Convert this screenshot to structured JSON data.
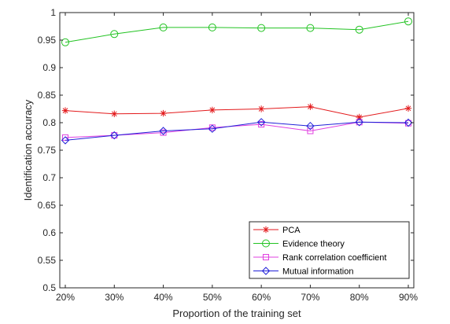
{
  "chart_data": {
    "type": "line",
    "title": "",
    "xlabel": "Proportion of the training set",
    "ylabel": "Identification accuracy",
    "categories": [
      "20%",
      "30%",
      "40%",
      "50%",
      "60%",
      "70%",
      "80%",
      "90%"
    ],
    "ylim": [
      0.5,
      1
    ],
    "yticks": [
      "0.5",
      "0.55",
      "0.6",
      "0.65",
      "0.7",
      "0.75",
      "0.8",
      "0.85",
      "0.9",
      "0.95",
      "1"
    ],
    "grid": false,
    "legend_position": "bottom-right",
    "series": [
      {
        "name": "PCA",
        "color": "#e31a1c",
        "marker": "star",
        "values": [
          0.822,
          0.816,
          0.817,
          0.823,
          0.825,
          0.829,
          0.81,
          0.826
        ]
      },
      {
        "name": "Evidence theory",
        "color": "#22c322",
        "marker": "circle",
        "values": [
          0.946,
          0.961,
          0.973,
          0.973,
          0.972,
          0.972,
          0.969,
          0.984
        ]
      },
      {
        "name": "Rank correlation coefficient",
        "color": "#e040e0",
        "marker": "square",
        "values": [
          0.773,
          0.777,
          0.782,
          0.791,
          0.797,
          0.785,
          0.801,
          0.799
        ]
      },
      {
        "name": "Mutual information",
        "color": "#2020d8",
        "marker": "diamond",
        "values": [
          0.768,
          0.777,
          0.785,
          0.789,
          0.801,
          0.794,
          0.801,
          0.8
        ]
      }
    ]
  }
}
